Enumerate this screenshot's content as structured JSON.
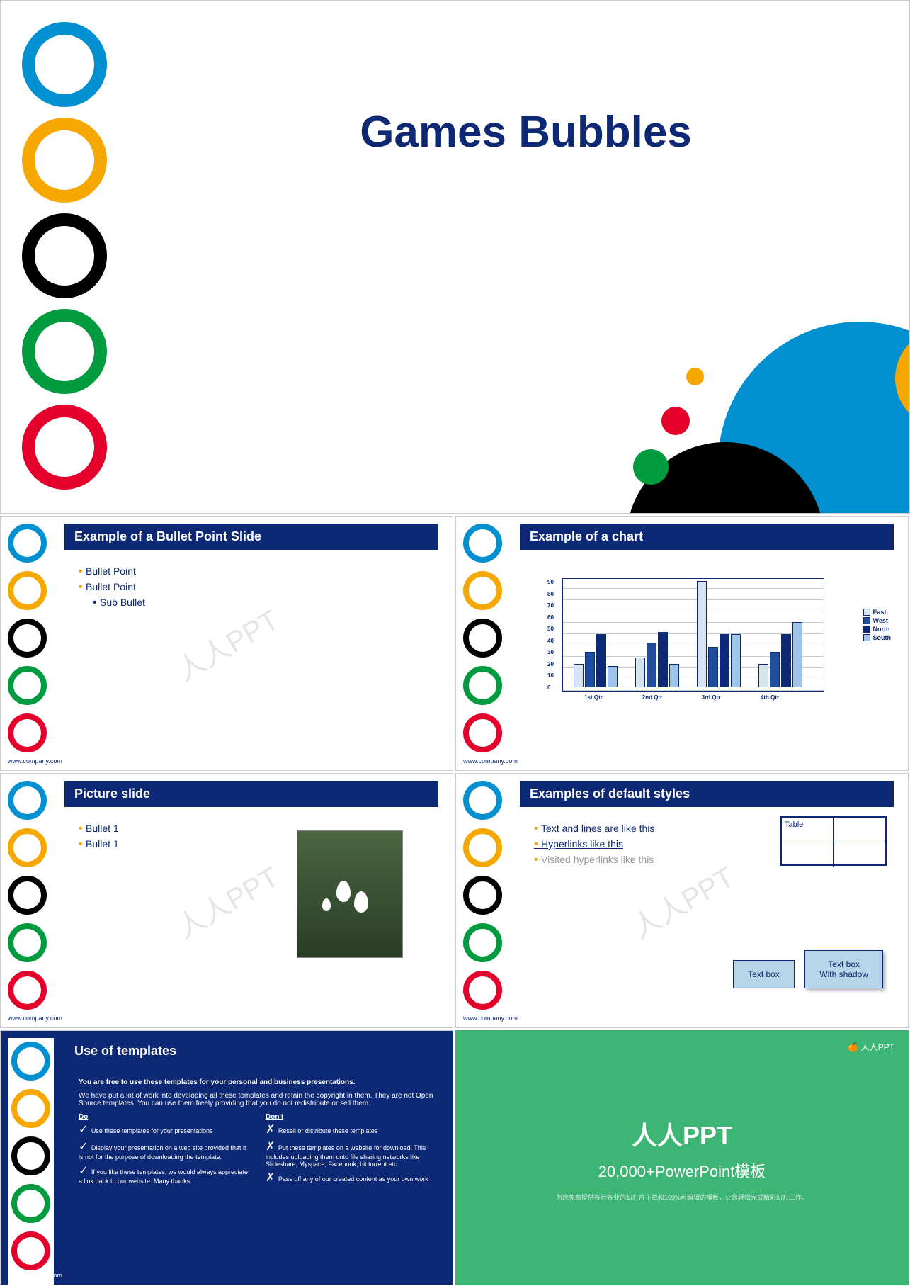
{
  "colors": {
    "blue": "#0090d2",
    "yellow": "#f7a800",
    "black": "#000000",
    "green": "#009b3e",
    "red": "#e4002b",
    "navy": "#0d2975",
    "chart_east": "#d6e4f2",
    "chart_west": "#1f4e9c",
    "chart_north": "#0d2975",
    "chart_south": "#9fc5e8"
  },
  "title_slide": {
    "title": "Games Bubbles"
  },
  "slide2": {
    "header": "Example of a Bullet Point Slide",
    "bullets": [
      "Bullet Point",
      "Bullet Point"
    ],
    "sub_bullets": [
      "Sub Bullet"
    ],
    "footer": "www.company.com"
  },
  "slide3": {
    "header": "Example of a chart",
    "footer": "www.company.com",
    "chart": {
      "ylim": [
        0,
        90
      ],
      "ytick_step": 10,
      "yticks": [
        "0",
        "10",
        "20",
        "30",
        "40",
        "50",
        "60",
        "70",
        "80",
        "90"
      ],
      "categories": [
        "1st Qtr",
        "2nd Qtr",
        "3rd Qtr",
        "4th Qtr"
      ],
      "series": [
        {
          "name": "East",
          "color": "#d6e4f2",
          "values": [
            20,
            25,
            90,
            20
          ]
        },
        {
          "name": "West",
          "color": "#1f4e9c",
          "values": [
            30,
            38,
            34,
            30
          ]
        },
        {
          "name": "North",
          "color": "#0d2975",
          "values": [
            45,
            47,
            45,
            45
          ]
        },
        {
          "name": "South",
          "color": "#9fc5e8",
          "values": [
            18,
            20,
            45,
            55
          ]
        }
      ]
    }
  },
  "slide4": {
    "header": "Picture slide",
    "bullets": [
      "Bullet 1",
      "Bullet 1"
    ],
    "footer": "www.company.com"
  },
  "slide5": {
    "header": "Examples of default styles",
    "items": [
      "Text and lines are like this",
      "Hyperlinks like this",
      "Visited hyperlinks like this"
    ],
    "table_label": "Table",
    "textbox1": "Text box",
    "textbox2": "Text box\nWith shadow",
    "footer": "www.company.com"
  },
  "slide6": {
    "header": "Use of templates",
    "intro_bold": "You are free to use these templates for your personal and business presentations.",
    "intro": "We have put a lot of work into developing all these templates and retain the copyright in them.  They are not Open Source templates.  You can use them freely providing that you do not redistribute or sell them.",
    "do_label": "Do",
    "dont_label": "Don't",
    "do_list": [
      "Use these templates for your presentations",
      "Display your presentation on a web site provided that it is not for the purpose of downloading the template.",
      "If you like these templates, we would always appreciate a link back to our website.  Many thanks."
    ],
    "dont_list": [
      "Resell or distribute these templates",
      "Put these templates on a website for download.  This includes uploading them onto file sharing networks like Slideshare, Myspace, Facebook, bit torrent etc",
      "Pass off any of our created content as your own work"
    ],
    "footer": "www.company.com"
  },
  "slide7": {
    "brand": "人人PPT",
    "title": "人人PPT",
    "subtitle": "20,000+PowerPoint模板",
    "tagline": "为您免费提供各行各业的幻灯片下载和100%可编辑的模板，让您轻松完成精彩幻灯工作。"
  },
  "watermark": "人人PPT"
}
